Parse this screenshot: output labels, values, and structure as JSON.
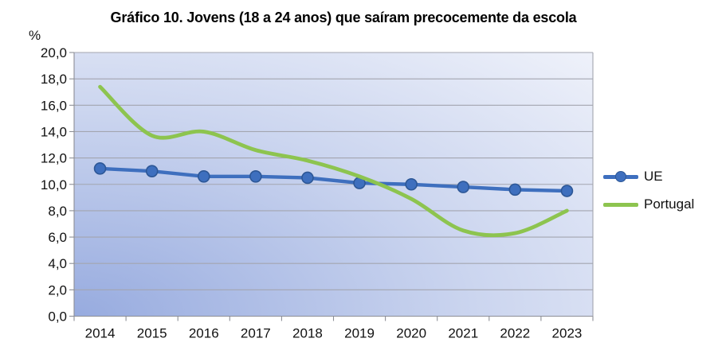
{
  "chart_data": {
    "type": "line",
    "title": "Gráfico 10. Jovens (18 a 24 anos) que saíram precocemente da escola",
    "ylabel": "%",
    "xlabel": "",
    "x": [
      "2014",
      "2015",
      "2016",
      "2017",
      "2018",
      "2019",
      "2020",
      "2021",
      "2022",
      "2023"
    ],
    "series": [
      {
        "name": "UE",
        "values": [
          11.2,
          11.0,
          10.6,
          10.6,
          10.5,
          10.1,
          10.0,
          9.8,
          9.6,
          9.5
        ],
        "color": "#3E6FBE",
        "marker": "circle",
        "marker_border": "#2D5796",
        "smooth": false
      },
      {
        "name": "Portugal",
        "values": [
          17.4,
          13.7,
          14.0,
          12.6,
          11.8,
          10.6,
          8.9,
          6.5,
          6.3,
          8.0
        ],
        "color": "#8DC44F",
        "marker": "none",
        "smooth": true
      }
    ],
    "ylim": [
      0,
      20
    ],
    "ytick_step": 2,
    "ytick_labels": [
      "0,0",
      "2,0",
      "4,0",
      "6,0",
      "8,0",
      "10,0",
      "12,0",
      "14,0",
      "16,0",
      "18,0",
      "20,0"
    ],
    "grid": "horizontal",
    "legend_position": "right",
    "plot_background_gradient": {
      "from": "#97ABDF",
      "mid": "#CBD5EF",
      "to": "#EEF1FA",
      "direction": "bottom-left-to-top-right"
    },
    "gridline_color": "#A3A5AF",
    "axis_color": "#8C8E96",
    "text_color": "#111111"
  }
}
